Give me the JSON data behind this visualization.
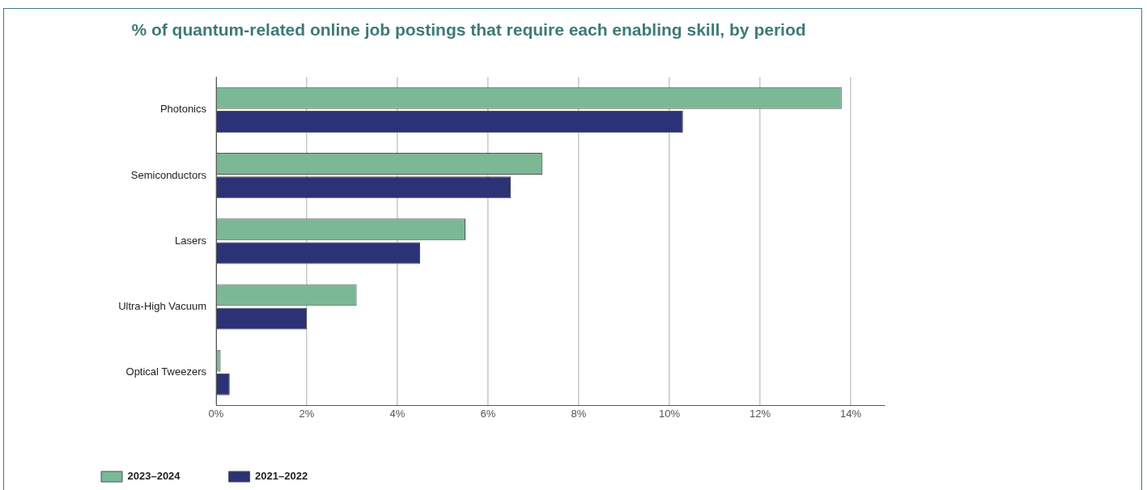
{
  "chart_data": {
    "type": "bar",
    "orientation": "horizontal",
    "title": "% of quantum-related online job postings that require each enabling skill, by period",
    "categories": [
      "Photonics",
      "Semiconductors",
      "Lasers",
      "Ultra-High Vacuum",
      "Optical Tweezers"
    ],
    "series": [
      {
        "name": "2023–2024",
        "color": "#7bb895",
        "values": [
          13.8,
          7.2,
          5.5,
          3.1,
          0.1
        ]
      },
      {
        "name": "2021–2022",
        "color": "#2b3276",
        "values": [
          10.3,
          6.5,
          4.5,
          2.0,
          0.3
        ]
      }
    ],
    "xlim": [
      0,
      14.75
    ],
    "xticks": [
      {
        "value": 0,
        "label": "0%"
      },
      {
        "value": 2,
        "label": "2%"
      },
      {
        "value": 4,
        "label": "4%"
      },
      {
        "value": 6,
        "label": "6%"
      },
      {
        "value": 8,
        "label": "8%"
      },
      {
        "value": 10,
        "label": "10%"
      },
      {
        "value": 12,
        "label": "12%"
      },
      {
        "value": 14,
        "label": "14%"
      }
    ],
    "grid": "x",
    "legend": "bottom left"
  }
}
